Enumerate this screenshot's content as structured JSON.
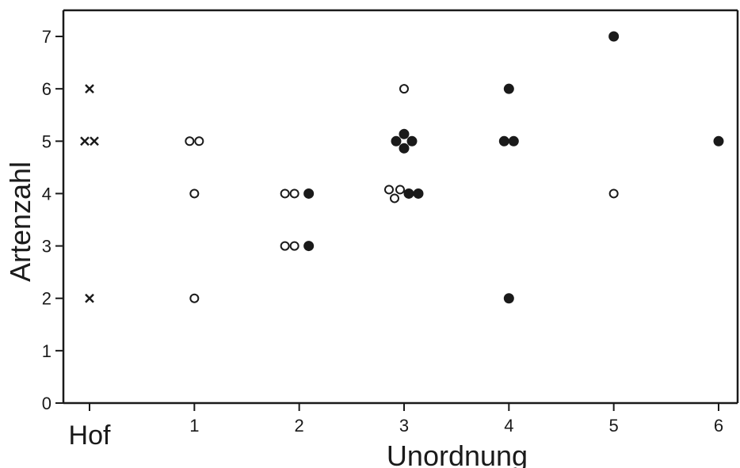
{
  "chart_data": {
    "type": "scatter",
    "xlabel": "Unordnung",
    "ylabel": "Artenzahl",
    "ylim": [
      0,
      7.5
    ],
    "xlim": [
      -0.25,
      6.2
    ],
    "x_ticks": [
      {
        "value": 0,
        "label": "Hof"
      },
      {
        "value": 1,
        "label": "1"
      },
      {
        "value": 2,
        "label": "2"
      },
      {
        "value": 3,
        "label": "3"
      },
      {
        "value": 4,
        "label": "4"
      },
      {
        "value": 5,
        "label": "5"
      },
      {
        "value": 6,
        "label": "6"
      }
    ],
    "y_ticks": [
      0,
      1,
      2,
      3,
      4,
      5,
      6,
      7
    ],
    "grid": false,
    "series": [
      {
        "marker": "x",
        "points": [
          {
            "x": 0,
            "y": 6
          },
          {
            "x": 0,
            "y": 5
          },
          {
            "x": 0,
            "y": 5
          },
          {
            "x": 0,
            "y": 2
          }
        ]
      },
      {
        "marker": "open-circle",
        "points": [
          {
            "x": 1,
            "y": 5
          },
          {
            "x": 1,
            "y": 5
          },
          {
            "x": 1,
            "y": 4
          },
          {
            "x": 1,
            "y": 2
          },
          {
            "x": 2,
            "y": 4
          },
          {
            "x": 2,
            "y": 4
          },
          {
            "x": 2,
            "y": 3
          },
          {
            "x": 2,
            "y": 3
          },
          {
            "x": 3,
            "y": 6
          },
          {
            "x": 3,
            "y": 4
          },
          {
            "x": 3,
            "y": 4
          },
          {
            "x": 3,
            "y": 4
          },
          {
            "x": 5,
            "y": 4
          }
        ]
      },
      {
        "marker": "filled-circle",
        "points": [
          {
            "x": 2,
            "y": 4
          },
          {
            "x": 2,
            "y": 3
          },
          {
            "x": 3,
            "y": 5
          },
          {
            "x": 3,
            "y": 5
          },
          {
            "x": 3,
            "y": 5
          },
          {
            "x": 3,
            "y": 5
          },
          {
            "x": 3,
            "y": 4
          },
          {
            "x": 3,
            "y": 4
          },
          {
            "x": 4,
            "y": 6
          },
          {
            "x": 4,
            "y": 5
          },
          {
            "x": 4,
            "y": 5
          },
          {
            "x": 4,
            "y": 2
          },
          {
            "x": 5,
            "y": 7
          },
          {
            "x": 6,
            "y": 5
          }
        ]
      }
    ]
  }
}
